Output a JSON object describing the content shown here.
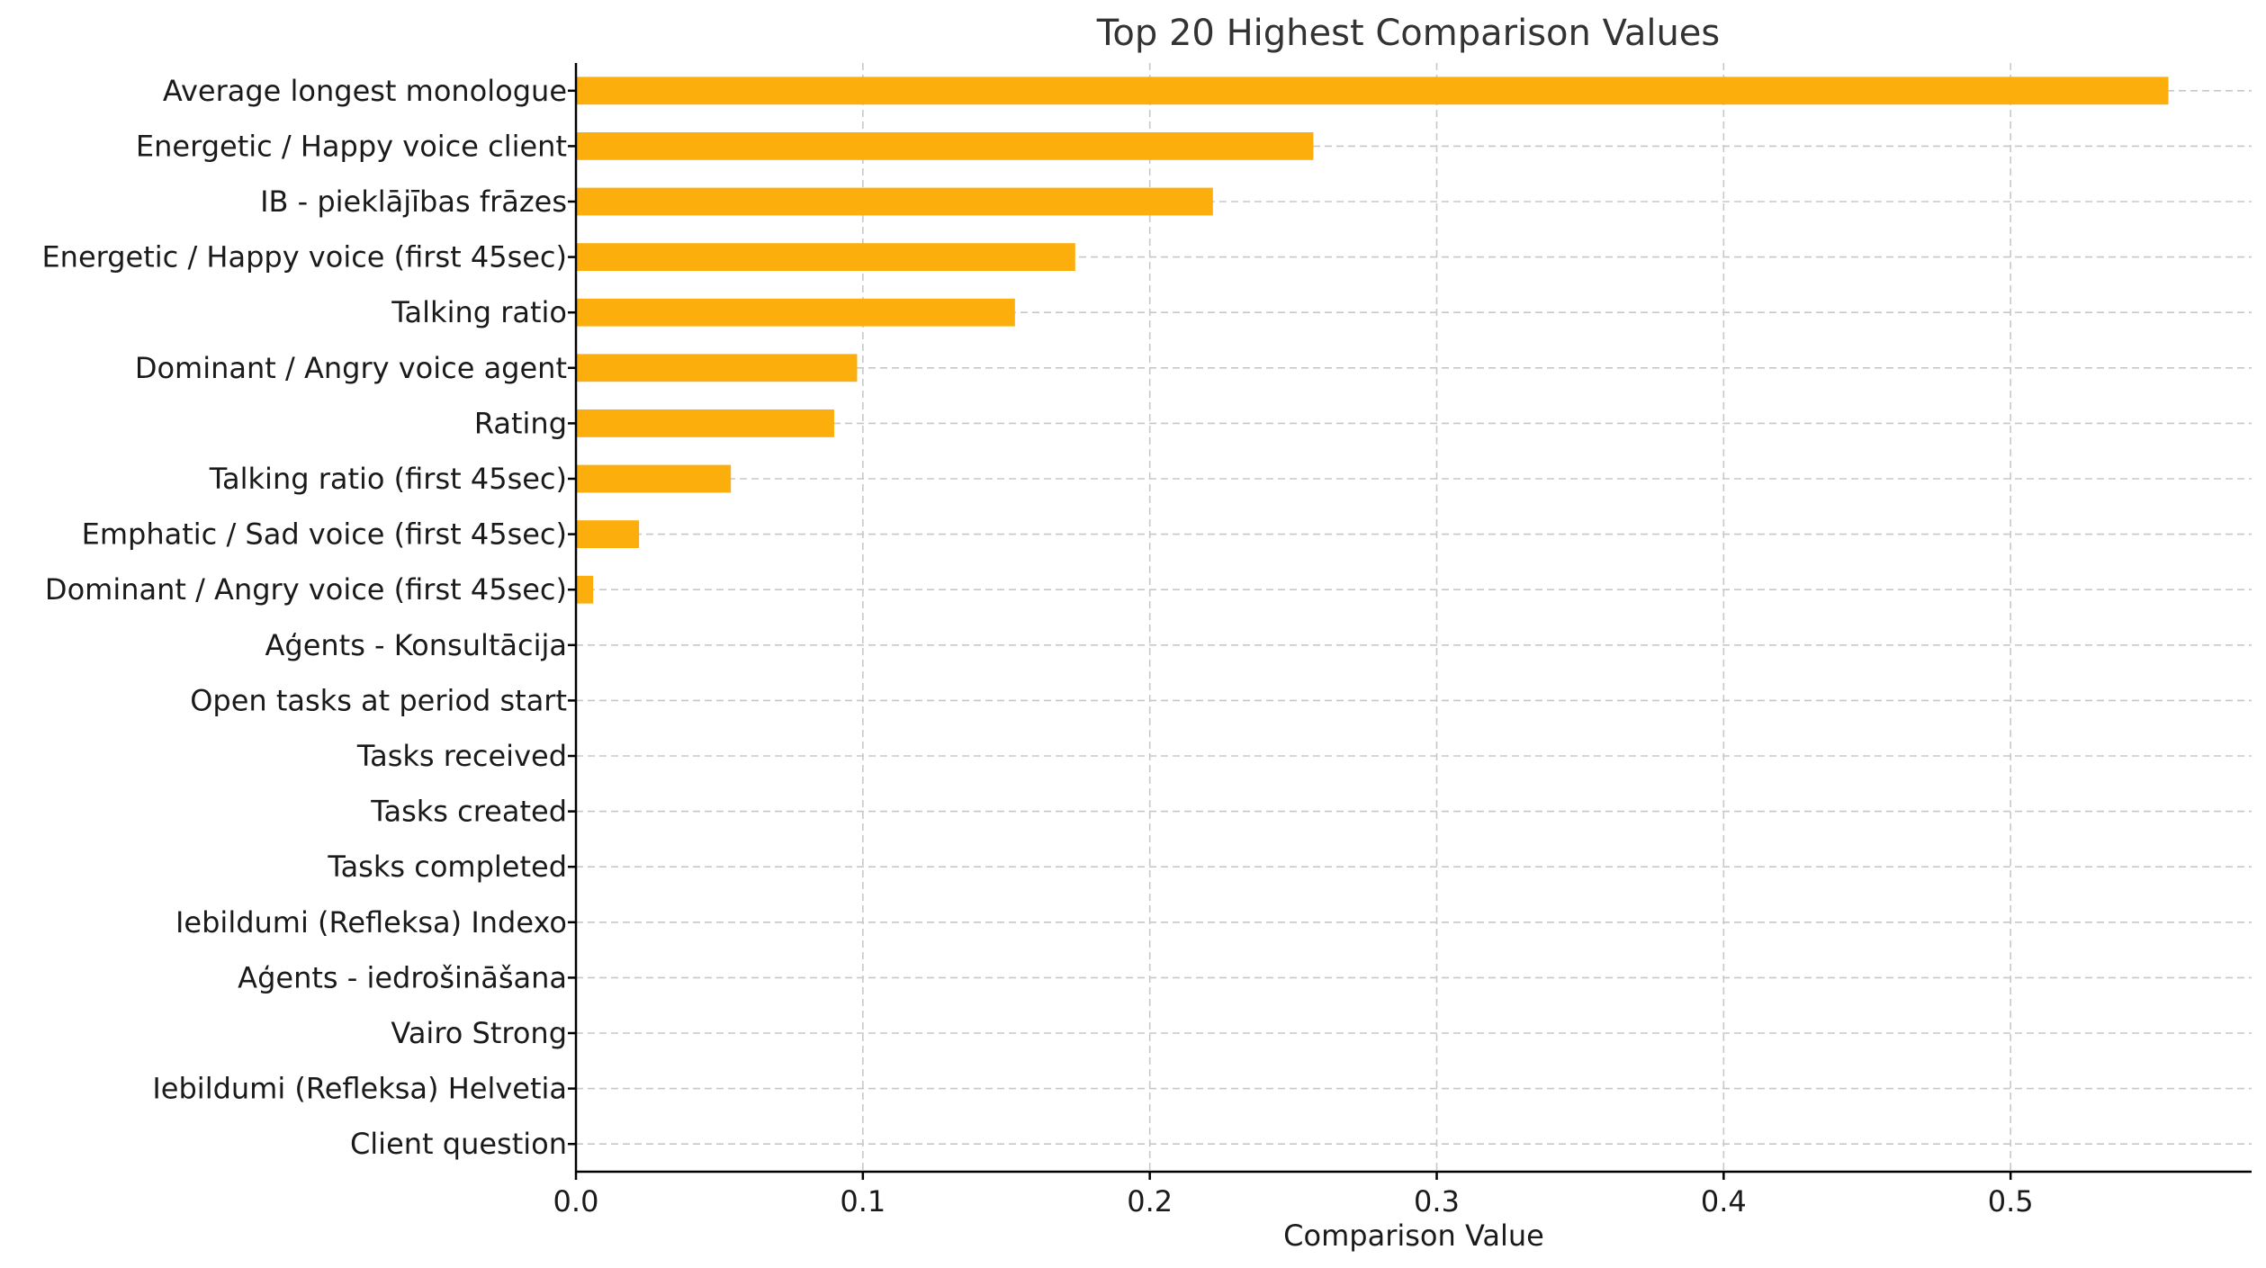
{
  "chart_data": {
    "type": "bar",
    "orientation": "horizontal",
    "title": "Top 20 Highest Comparison Values",
    "xlabel": "Comparison Value",
    "ylabel": "",
    "xlim": [
      0,
      0.584
    ],
    "xticks": [
      0.0,
      0.1,
      0.2,
      0.3,
      0.4,
      0.5
    ],
    "xtick_labels": [
      "0.0",
      "0.1",
      "0.2",
      "0.3",
      "0.4",
      "0.5"
    ],
    "grid": true,
    "bar_color": "#FBAE0C",
    "categories": [
      "Average longest monologue",
      "Energetic / Happy voice client",
      "IB - pieklājības frāzes",
      "Energetic / Happy voice (first 45sec)",
      "Talking ratio",
      "Dominant / Angry voice agent",
      "Rating",
      "Talking ratio  (first 45sec)",
      "Emphatic / Sad voice (first 45sec)",
      "Dominant / Angry voice (first 45sec)",
      "Aģents - Konsultācija",
      "Open tasks at period start",
      "Tasks received",
      "Tasks created",
      "Tasks completed",
      "Iebildumi (Refleksa) Indexo",
      "Aģents - iedrošināšana",
      "Vairo Strong",
      "Iebildumi (Refleksa) Helvetia",
      "Client question"
    ],
    "values": [
      0.555,
      0.257,
      0.222,
      0.174,
      0.153,
      0.098,
      0.09,
      0.054,
      0.022,
      0.006,
      0,
      0,
      0,
      0,
      0,
      0,
      0,
      0,
      0,
      0
    ]
  }
}
